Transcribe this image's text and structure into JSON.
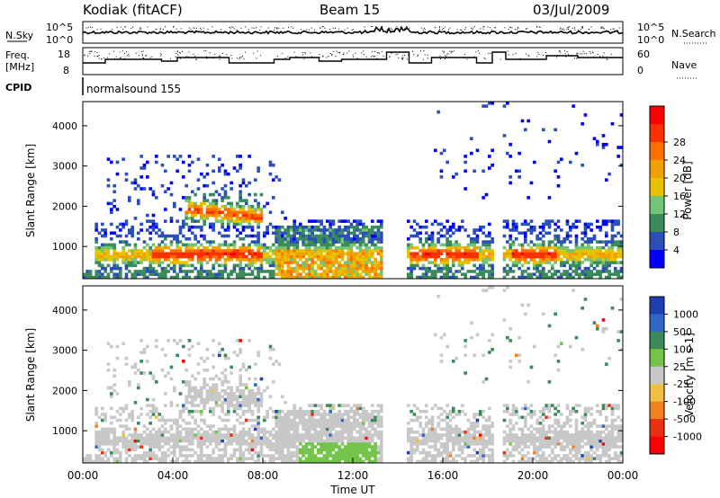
{
  "header": {
    "station": "Kodiak (fitACF)",
    "beam": "Beam 15",
    "date": "03/Jul/2009"
  },
  "noise_panel": {
    "left_label": "N.Sky",
    "right_label": "N.Search",
    "left_ticks": [
      "10^5",
      "10^0"
    ],
    "right_ticks": [
      "10^5",
      "10^0"
    ]
  },
  "freq_panel": {
    "left_label_1": "Freq.",
    "left_label_2": "[MHz]",
    "left_ticks": [
      "18",
      "8"
    ],
    "right_ticks": [
      "60",
      "0"
    ],
    "right_label": "Nave"
  },
  "cpid": {
    "label": "CPID",
    "program": "normalsound 155"
  },
  "chart_data": [
    {
      "type": "heatmap",
      "name": "power",
      "ylabel": "Slant Range [km]",
      "yticks": [
        "1000",
        "2000",
        "3000",
        "4000"
      ],
      "ylim": [
        200,
        4600
      ],
      "xlim": [
        0,
        24
      ],
      "colorbar": {
        "label": "Power [dB]",
        "ticks": [
          "4",
          "8",
          "12",
          "16",
          "20",
          "24",
          "28"
        ],
        "colors": [
          "#0000ff",
          "#2a4fb8",
          "#3a8a5a",
          "#74c476",
          "#e6c200",
          "#f0a000",
          "#ff7000",
          "#ff3000",
          "#ff0000"
        ]
      }
    },
    {
      "type": "heatmap",
      "name": "velocity",
      "ylabel": "Slant Range [km]",
      "yticks": [
        "1000",
        "2000",
        "3000",
        "4000"
      ],
      "ylim": [
        200,
        4600
      ],
      "xlim": [
        0,
        24
      ],
      "xticks": [
        "00:00",
        "04:00",
        "08:00",
        "12:00",
        "16:00",
        "20:00",
        "00:00"
      ],
      "xlabel": "Time UT",
      "colorbar": {
        "label": "Velocity [m s-1]",
        "ticks": [
          "1000",
          "500",
          "100",
          "25",
          "-25",
          "-100",
          "-500",
          "-1000"
        ],
        "colors": [
          "#1f3fb0",
          "#2f68c8",
          "#3a8a5a",
          "#74c44a",
          "#c8c8c8",
          "#f0c040",
          "#f08020",
          "#e83010",
          "#ff0000"
        ]
      }
    }
  ]
}
